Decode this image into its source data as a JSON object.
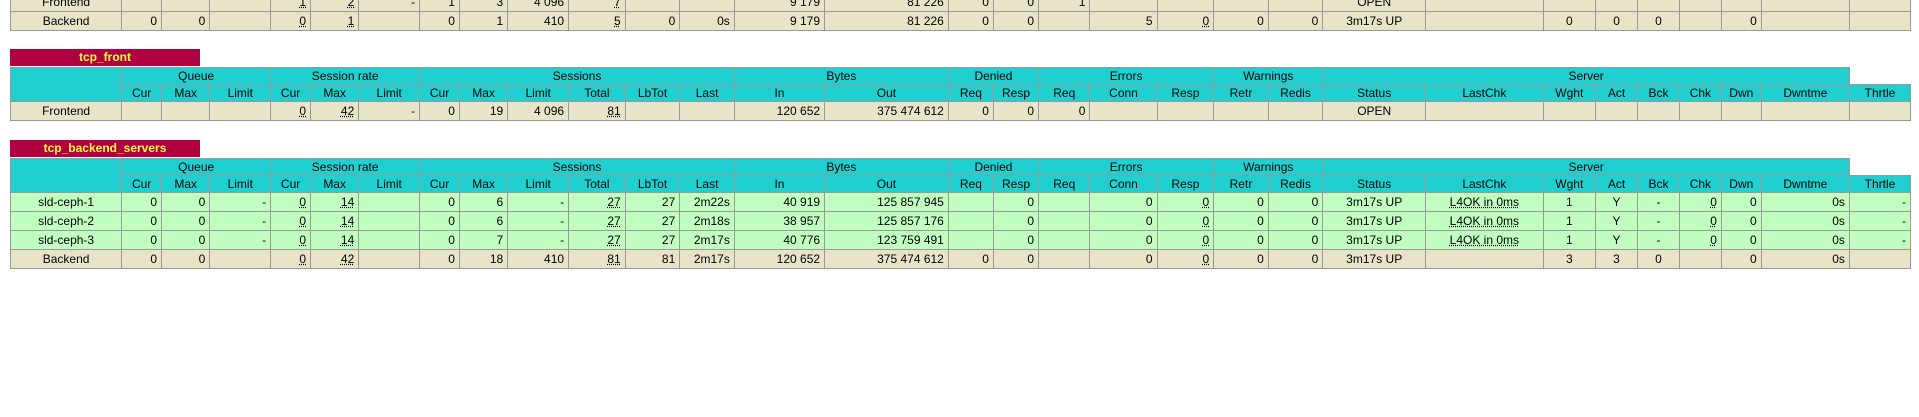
{
  "top_table": {
    "rows": [
      {
        "name": "Frontend",
        "cells": [
          "",
          "",
          "",
          "1",
          "2",
          "-",
          "1",
          "3",
          "4 096",
          "7",
          "",
          "",
          "9 179",
          "81 226",
          "0",
          "0",
          "1",
          "",
          "",
          "",
          "",
          "OPEN",
          "",
          "",
          "",
          "",
          "",
          "",
          "",
          "",
          ""
        ]
      },
      {
        "name": "Backend",
        "cells": [
          "0",
          "0",
          "",
          "0",
          "1",
          "",
          "0",
          "1",
          "410",
          "5",
          "0",
          "0s",
          "9 179",
          "81 226",
          "0",
          "0",
          "",
          "5",
          "0",
          "0",
          "0",
          "3m17s UP",
          "",
          "0",
          "0",
          "0",
          "",
          "0",
          "",
          ""
        ]
      }
    ]
  },
  "sections": [
    {
      "id": "tcp_front",
      "title": "tcp_front",
      "groups": [
        "Queue",
        "Session rate",
        "Sessions",
        "Bytes",
        "Denied",
        "Errors",
        "Warnings",
        "Server"
      ],
      "columns": [
        "Cur",
        "Max",
        "Limit",
        "Cur",
        "Max",
        "Limit",
        "Cur",
        "Max",
        "Limit",
        "Total",
        "LbTot",
        "Last",
        "In",
        "Out",
        "Req",
        "Resp",
        "Req",
        "Conn",
        "Resp",
        "Retr",
        "Redis",
        "Status",
        "LastChk",
        "Wght",
        "Act",
        "Bck",
        "Chk",
        "Dwn",
        "Dwntme",
        "Thrtle"
      ],
      "rows": [
        {
          "name": "Frontend",
          "cells": [
            "",
            "",
            "",
            "0",
            "42",
            "-",
            "0",
            "19",
            "4 096",
            "81",
            "",
            "",
            "120 652",
            "375 474 612",
            "0",
            "0",
            "0",
            "",
            "",
            "",
            "",
            "OPEN",
            "",
            "",
            "",
            "",
            "",
            "",
            "",
            ""
          ]
        }
      ]
    },
    {
      "id": "tcp_backend_servers",
      "title": "tcp_backend_servers",
      "groups": [
        "Queue",
        "Session rate",
        "Sessions",
        "Bytes",
        "Denied",
        "Errors",
        "Warnings",
        "Server"
      ],
      "columns": [
        "Cur",
        "Max",
        "Limit",
        "Cur",
        "Max",
        "Limit",
        "Cur",
        "Max",
        "Limit",
        "Total",
        "LbTot",
        "Last",
        "In",
        "Out",
        "Req",
        "Resp",
        "Req",
        "Conn",
        "Resp",
        "Retr",
        "Redis",
        "Status",
        "LastChk",
        "Wght",
        "Act",
        "Bck",
        "Chk",
        "Dwn",
        "Dwntme",
        "Thrtle"
      ],
      "rows": [
        {
          "name": "sld-ceph-1",
          "cells": [
            "0",
            "0",
            "-",
            "0",
            "14",
            "",
            "0",
            "6",
            "-",
            "27",
            "27",
            "2m22s",
            "40 919",
            "125 857 945",
            "",
            "0",
            "",
            "0",
            "0",
            "0",
            "0",
            "3m17s UP",
            "L4OK in 0ms",
            "1",
            "Y",
            "-",
            "0",
            "0",
            "0s",
            "-"
          ]
        },
        {
          "name": "sld-ceph-2",
          "cells": [
            "0",
            "0",
            "-",
            "0",
            "14",
            "",
            "0",
            "6",
            "-",
            "27",
            "27",
            "2m18s",
            "38 957",
            "125 857 176",
            "",
            "0",
            "",
            "0",
            "0",
            "0",
            "0",
            "3m17s UP",
            "L4OK in 0ms",
            "1",
            "Y",
            "-",
            "0",
            "0",
            "0s",
            "-"
          ]
        },
        {
          "name": "sld-ceph-3",
          "cells": [
            "0",
            "0",
            "-",
            "0",
            "14",
            "",
            "0",
            "7",
            "-",
            "27",
            "27",
            "2m17s",
            "40 776",
            "123 759 491",
            "",
            "0",
            "",
            "0",
            "0",
            "0",
            "0",
            "3m17s UP",
            "L4OK in 0ms",
            "1",
            "Y",
            "-",
            "0",
            "0",
            "0s",
            "-"
          ]
        },
        {
          "name": "Backend",
          "cells": [
            "0",
            "0",
            "",
            "0",
            "42",
            "",
            "0",
            "18",
            "410",
            "81",
            "81",
            "2m17s",
            "120 652",
            "375 474 612",
            "0",
            "0",
            "",
            "0",
            "0",
            "0",
            "0",
            "3m17s UP",
            "",
            "3",
            "3",
            "0",
            "",
            "0",
            "0s",
            ""
          ]
        }
      ]
    }
  ]
}
